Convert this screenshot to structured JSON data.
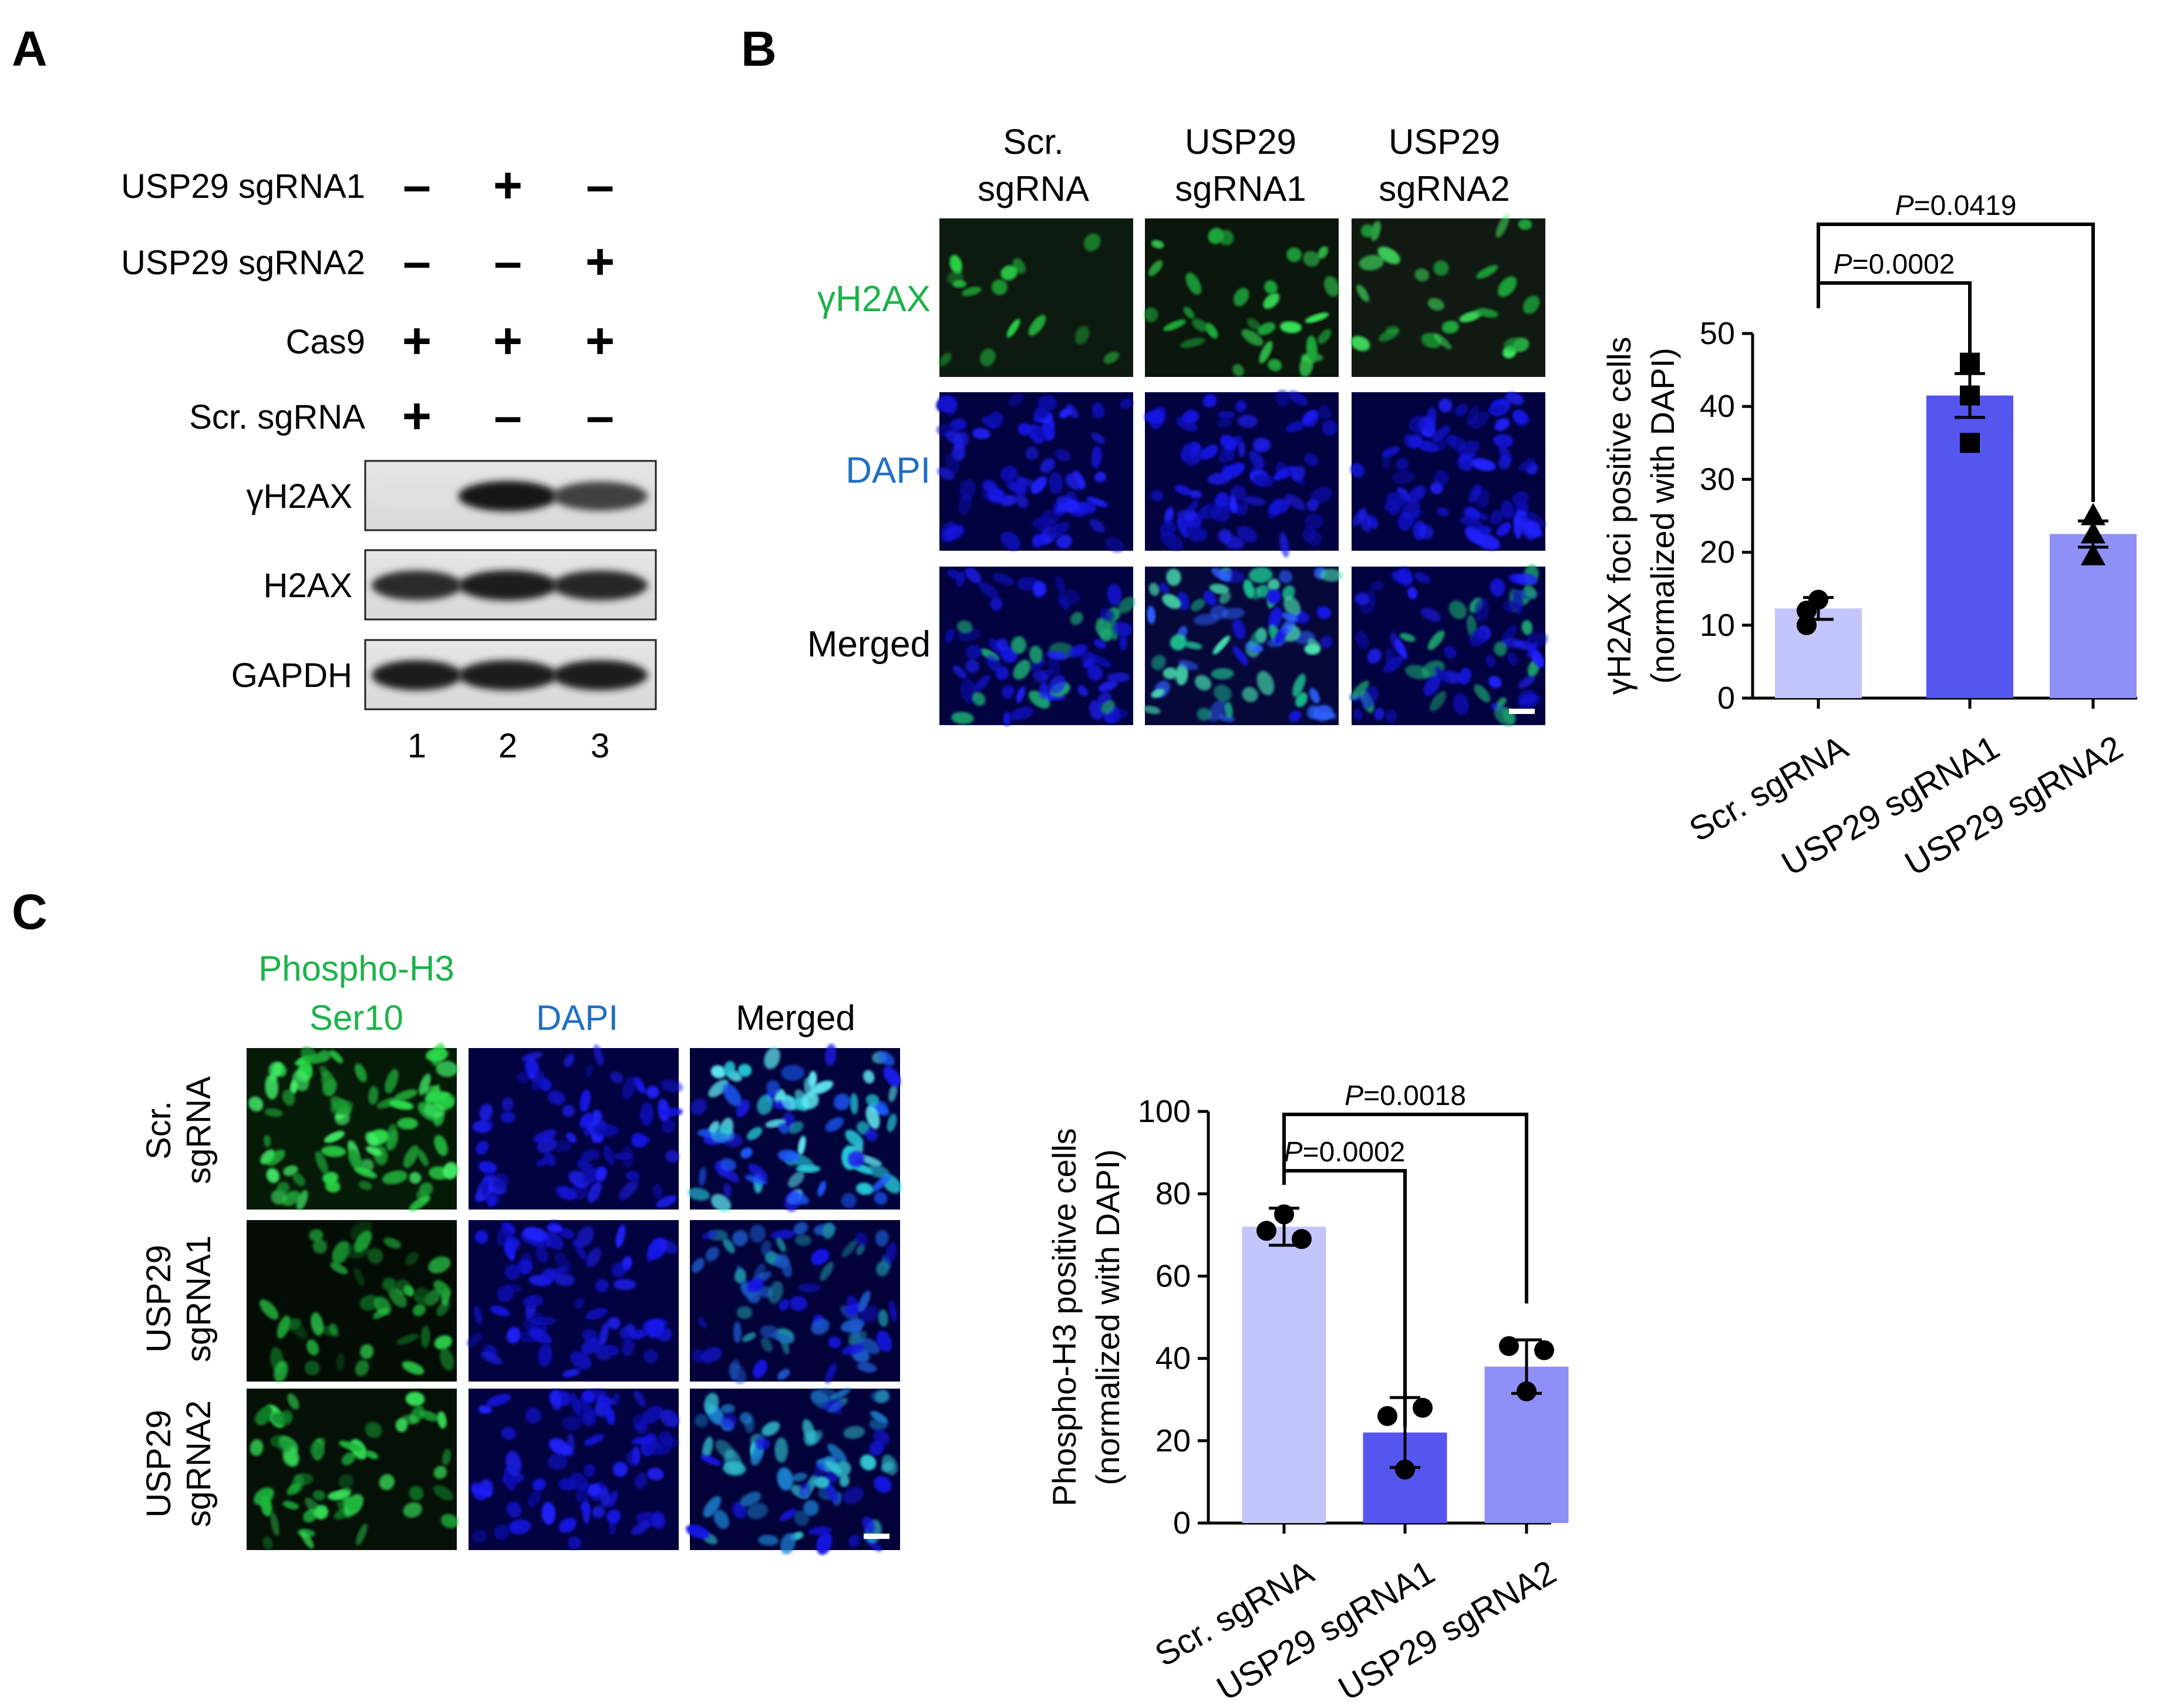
{
  "panel_labels": {
    "a": "A",
    "b": "B",
    "c": "C"
  },
  "colors": {
    "green_label": "#1db34a",
    "blue_label": "#1f6fc4",
    "bar_scr": "#c2c6fb",
    "bar_sg1": "#5555f0",
    "bar_sg2": "#8f8ff8"
  },
  "panel_a": {
    "rows": [
      {
        "label": "USP29 sgRNA1",
        "marks": [
          "–",
          "+",
          "–"
        ]
      },
      {
        "label": "USP29 sgRNA2",
        "marks": [
          "–",
          "–",
          "+"
        ]
      },
      {
        "label": "Cas9",
        "marks": [
          "+",
          "+",
          "+"
        ]
      },
      {
        "label": "Scr. sgRNA",
        "marks": [
          "+",
          "–",
          "–"
        ]
      }
    ],
    "blots": [
      {
        "label": "γH2AX",
        "intensity": [
          0.05,
          1.0,
          0.8
        ]
      },
      {
        "label": "H2AX",
        "intensity": [
          0.9,
          0.95,
          0.92
        ]
      },
      {
        "label": "GAPDH",
        "intensity": [
          0.95,
          0.95,
          0.95
        ]
      }
    ],
    "lanes": [
      "1",
      "2",
      "3"
    ]
  },
  "panel_b": {
    "columns": [
      "Scr.",
      "sgRNA",
      "USP29",
      "sgRNA1",
      "USP29",
      "sgRNA2"
    ],
    "rows": [
      "γH2AX",
      "DAPI",
      "Merged"
    ]
  },
  "panel_c": {
    "columns": [
      "Phospho-H3",
      "Ser10",
      "DAPI",
      "Merged"
    ],
    "rows": [
      [
        "Scr.",
        "sgRNA"
      ],
      [
        "USP29",
        "sgRNA1"
      ],
      [
        "USP29",
        "sgRNA2"
      ]
    ]
  },
  "chart_data": [
    {
      "type": "bar",
      "panel": "B",
      "categories": [
        "Scr. sgRNA",
        "USP29 sgRNA1",
        "USP29 sgRNA2"
      ],
      "values": [
        12.3,
        41.5,
        22.5
      ],
      "error": [
        1.5,
        3.0,
        1.8
      ],
      "points": [
        [
          13.5,
          12.0,
          10.0
        ],
        [
          46.0,
          41.5,
          35.0
        ],
        [
          25.0,
          22.5,
          19.5
        ]
      ],
      "markers": [
        "circle",
        "square",
        "triangle"
      ],
      "ylabel_lines": [
        "γH2AX foci positive cells",
        "(normalized with DAPI)"
      ],
      "ylim": [
        0,
        50
      ],
      "yticks": [
        0,
        10,
        20,
        30,
        40,
        50
      ],
      "comparisons": [
        {
          "from": 0,
          "to": 1,
          "p_label": "P",
          "p_value": "=0.0002"
        },
        {
          "from": 0,
          "to": 2,
          "p_label": "P",
          "p_value": "=0.0419"
        }
      ]
    },
    {
      "type": "bar",
      "panel": "C",
      "categories": [
        "Scr. sgRNA",
        "USP29 sgRNA1",
        "USP29 sgRNA2"
      ],
      "values": [
        72,
        22,
        38
      ],
      "error": [
        4.5,
        8.5,
        6.5
      ],
      "points": [
        [
          75,
          71,
          69
        ],
        [
          26,
          28,
          13
        ],
        [
          43,
          42,
          32
        ]
      ],
      "markers": [
        "circle",
        "circle",
        "circle"
      ],
      "ylabel_lines": [
        "Phospho-H3 positive cells",
        "(normalized with DAPI)"
      ],
      "ylim": [
        0,
        100
      ],
      "yticks": [
        0,
        20,
        40,
        60,
        80,
        100
      ],
      "comparisons": [
        {
          "from": 0,
          "to": 1,
          "p_label": "P",
          "p_value": "=0.0002"
        },
        {
          "from": 0,
          "to": 2,
          "p_label": "P",
          "p_value": "=0.0018"
        }
      ]
    }
  ]
}
